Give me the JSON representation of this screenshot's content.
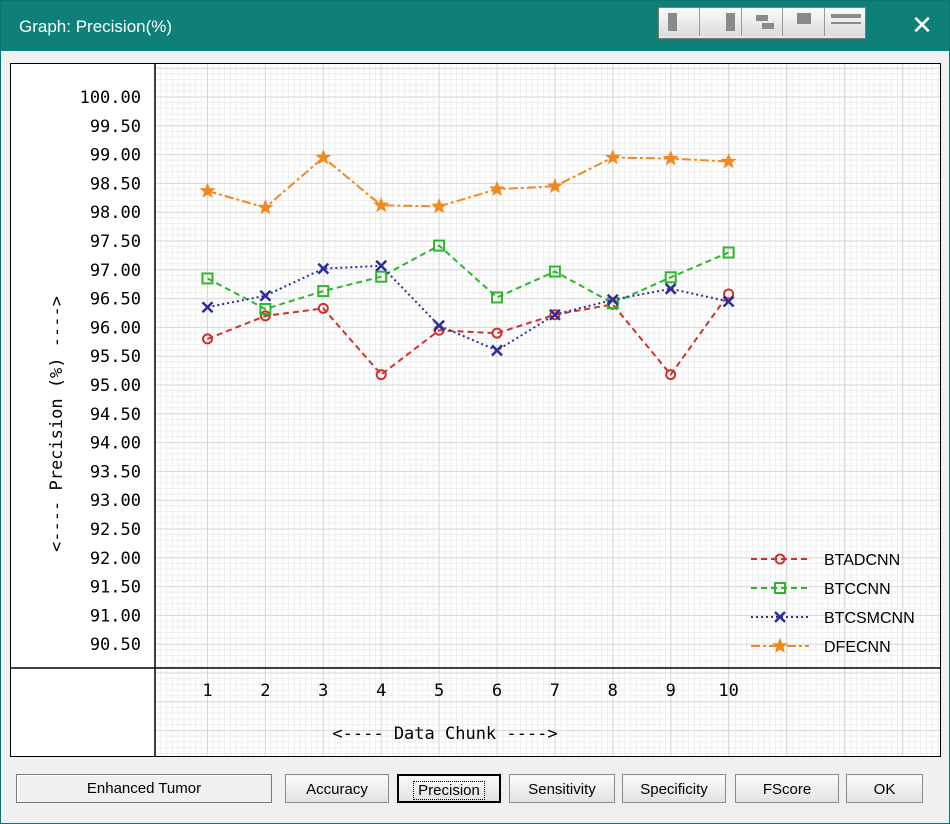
{
  "window": {
    "title": "Graph: Precision(%)",
    "close_glyph": "✕"
  },
  "layout_buttons": [
    "layout-single-icon",
    "layout-split-icon",
    "layout-tiles-icon",
    "layout-stack-icon",
    "layout-wide-icon"
  ],
  "status_text": "Enhanced Tumor",
  "buttons": {
    "accuracy": "Accuracy",
    "precision": "Precision",
    "sensitivity": "Sensitivity",
    "specificity": "Specificity",
    "fscore": "FScore",
    "ok": "OK"
  },
  "colors": {
    "titlebar": "#0e8078",
    "grid": "#d9d9d9"
  },
  "chart_data": {
    "type": "line",
    "xlabel": "<---- Data Chunk ---->",
    "ylabel": "<---- Precision (%) ---->",
    "x": [
      1,
      2,
      3,
      4,
      5,
      6,
      7,
      8,
      9,
      10
    ],
    "ylim": [
      90.0,
      100.5
    ],
    "yticks": [
      "100.00",
      "99.50",
      "99.00",
      "98.50",
      "98.00",
      "97.50",
      "97.00",
      "96.50",
      "96.00",
      "95.50",
      "95.00",
      "94.50",
      "94.00",
      "93.50",
      "93.00",
      "92.50",
      "92.00",
      "91.50",
      "91.00",
      "90.50"
    ],
    "grid": true,
    "legend": "bottom-right",
    "series": [
      {
        "name": "BTADCNN",
        "color": "#d0312d",
        "marker": "circle",
        "dash": "dashed",
        "values": [
          95.8,
          96.2,
          96.33,
          95.18,
          95.95,
          95.9,
          96.22,
          96.4,
          95.18,
          96.58
        ]
      },
      {
        "name": "BTCCNN",
        "color": "#2db52d",
        "marker": "square",
        "dash": "dashed",
        "values": [
          96.85,
          96.32,
          96.63,
          96.88,
          97.42,
          96.52,
          96.97,
          96.42,
          96.87,
          97.3
        ]
      },
      {
        "name": "BTCSMCNN",
        "color": "#2d2d9b",
        "marker": "x",
        "dash": "dotted",
        "values": [
          96.35,
          96.55,
          97.02,
          97.07,
          96.03,
          95.6,
          96.22,
          96.48,
          96.67,
          96.45
        ]
      },
      {
        "name": "DFECNN",
        "color": "#f08a1e",
        "marker": "star",
        "dash": "dashdot",
        "values": [
          98.37,
          98.08,
          98.95,
          98.12,
          98.1,
          98.4,
          98.45,
          98.95,
          98.93,
          98.88
        ]
      }
    ]
  }
}
